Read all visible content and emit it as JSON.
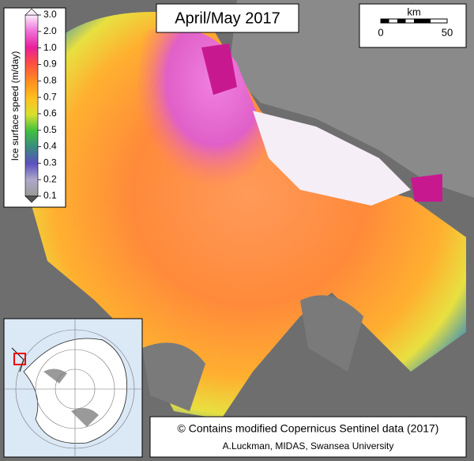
{
  "title": "April/May 2017",
  "colorbar": {
    "label": "Ice surface speed (m/day)",
    "ticks": [
      "3.0",
      "2.0",
      "1.0",
      "0.9",
      "0.8",
      "0.7",
      "0.6",
      "0.5",
      "0.4",
      "0.3",
      "0.2",
      "0.1"
    ]
  },
  "scale_bar": {
    "unit": "km",
    "start": "0",
    "end": "50"
  },
  "credits": {
    "line1": "© Contains modified Copernicus Sentinel data (2017)",
    "line2": "A.Luckman, MIDAS, Swansea University"
  }
}
